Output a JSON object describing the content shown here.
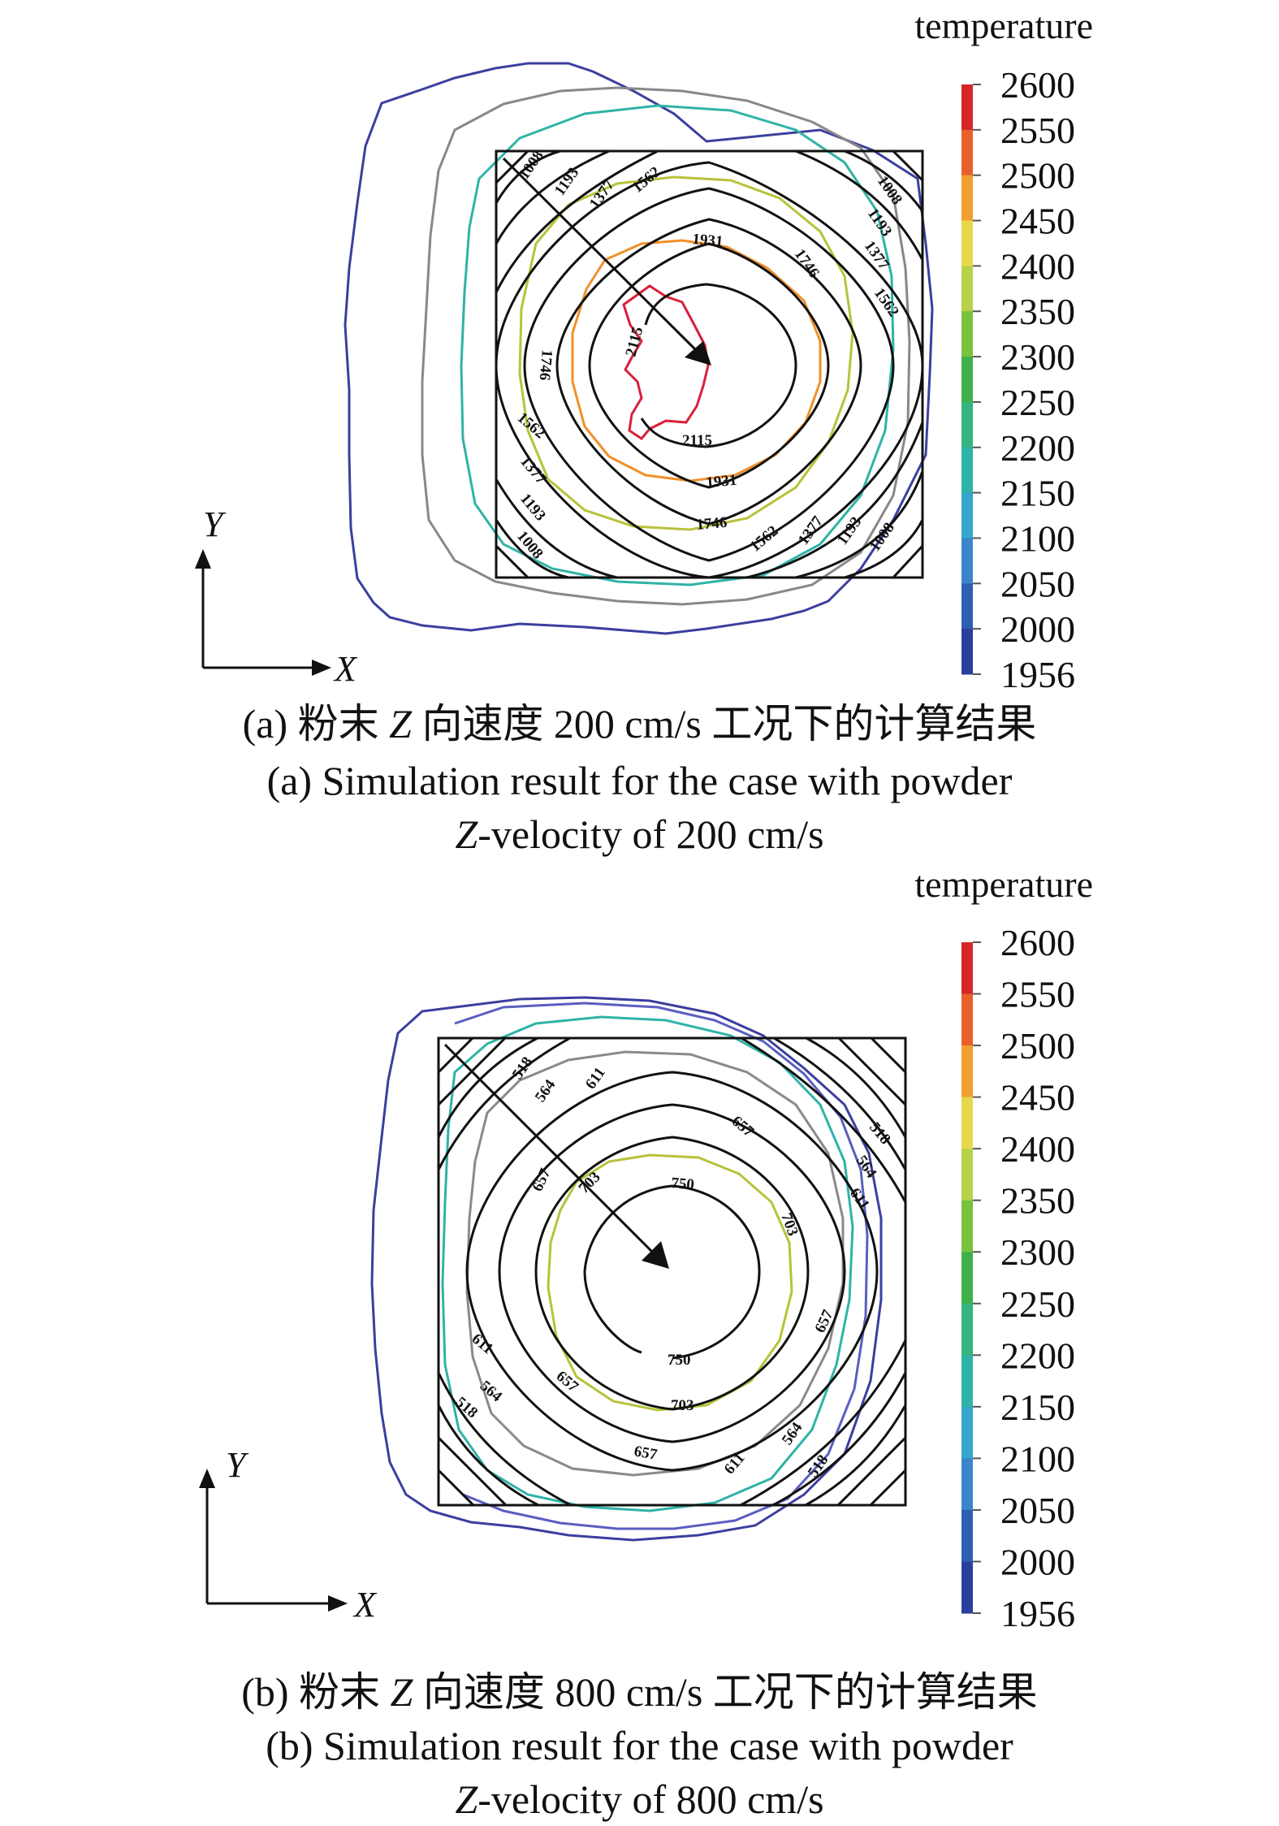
{
  "chart_data": [
    {
      "type": "contour",
      "panel": "a",
      "colorbar": {
        "title": "temperature",
        "ticks": [
          "2600",
          "2550",
          "2500",
          "2450",
          "2400",
          "2350",
          "2300",
          "2250",
          "2200",
          "2150",
          "2100",
          "2050",
          "2000",
          "1956"
        ],
        "colors": [
          "#d62728",
          "#e8602c",
          "#f0a030",
          "#e6d84a",
          "#b8d24a",
          "#78c23e",
          "#3fb04a",
          "#36b37e",
          "#2fb3a7",
          "#35a6cc",
          "#3a86c8",
          "#2f5fb0",
          "#2a3f9e"
        ]
      },
      "contour_levels": [
        "1008",
        "1193",
        "1377",
        "1562",
        "1746",
        "1931",
        "2115"
      ],
      "axes": {
        "x": "X",
        "y": "Y"
      },
      "caption_cn": {
        "prefix": "(a) 粉末 ",
        "var": "Z",
        "suffix": " 向速度 200 cm/s 工况下的计算结果"
      },
      "caption_en": {
        "line1": "(a) Simulation result for the case with powder",
        "var": "Z",
        "line2_suffix": "-velocity of 200 cm/s"
      }
    },
    {
      "type": "contour",
      "panel": "b",
      "colorbar": {
        "title": "temperature",
        "ticks": [
          "2600",
          "2550",
          "2500",
          "2450",
          "2400",
          "2350",
          "2300",
          "2250",
          "2200",
          "2150",
          "2100",
          "2050",
          "2000",
          "1956"
        ],
        "colors": [
          "#d62728",
          "#e8602c",
          "#f0a030",
          "#e6d84a",
          "#b8d24a",
          "#78c23e",
          "#3fb04a",
          "#36b37e",
          "#2fb3a7",
          "#35a6cc",
          "#3a86c8",
          "#2f5fb0",
          "#2a3f9e"
        ]
      },
      "contour_levels": [
        "518",
        "564",
        "611",
        "657",
        "703",
        "750"
      ],
      "axes": {
        "x": "X",
        "y": "Y"
      },
      "caption_cn": {
        "prefix": "(b) 粉末 ",
        "var": "Z",
        "suffix": " 向速度 800 cm/s 工况下的计算结果"
      },
      "caption_en": {
        "line1": "(b) Simulation result for the case with powder",
        "var": "Z",
        "line2_suffix": "-velocity of 800 cm/s"
      }
    }
  ]
}
